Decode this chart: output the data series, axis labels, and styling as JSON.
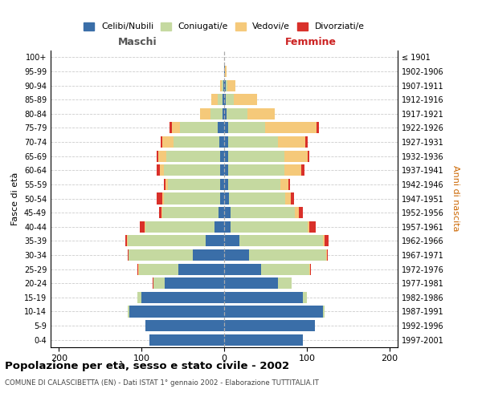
{
  "age_groups": [
    "0-4",
    "5-9",
    "10-14",
    "15-19",
    "20-24",
    "25-29",
    "30-34",
    "35-39",
    "40-44",
    "45-49",
    "50-54",
    "55-59",
    "60-64",
    "65-69",
    "70-74",
    "75-79",
    "80-84",
    "85-89",
    "90-94",
    "95-99",
    "100+"
  ],
  "birth_years": [
    "1997-2001",
    "1992-1996",
    "1987-1991",
    "1982-1986",
    "1977-1981",
    "1972-1976",
    "1967-1971",
    "1962-1966",
    "1957-1961",
    "1952-1956",
    "1947-1951",
    "1942-1946",
    "1937-1941",
    "1932-1936",
    "1927-1931",
    "1922-1926",
    "1917-1921",
    "1912-1916",
    "1907-1911",
    "1902-1906",
    "≤ 1901"
  ],
  "maschi": {
    "celibe": [
      90,
      95,
      115,
      100,
      72,
      55,
      38,
      22,
      12,
      7,
      5,
      5,
      5,
      5,
      6,
      8,
      2,
      2,
      1,
      0,
      0
    ],
    "coniugato": [
      0,
      0,
      2,
      5,
      14,
      48,
      78,
      95,
      83,
      68,
      68,
      63,
      68,
      65,
      55,
      45,
      15,
      6,
      2,
      0,
      0
    ],
    "vedovo": [
      0,
      0,
      0,
      0,
      0,
      1,
      0,
      1,
      1,
      1,
      2,
      3,
      5,
      10,
      14,
      10,
      12,
      8,
      2,
      0,
      0
    ],
    "divorziato": [
      0,
      0,
      0,
      0,
      1,
      1,
      1,
      2,
      6,
      3,
      7,
      2,
      4,
      2,
      2,
      3,
      0,
      0,
      0,
      0,
      0
    ]
  },
  "femmine": {
    "nubile": [
      95,
      110,
      120,
      95,
      65,
      45,
      30,
      18,
      8,
      8,
      6,
      5,
      5,
      5,
      5,
      5,
      3,
      2,
      2,
      1,
      0
    ],
    "coniugata": [
      0,
      0,
      2,
      5,
      17,
      58,
      93,
      102,
      93,
      78,
      68,
      63,
      68,
      68,
      60,
      45,
      25,
      10,
      2,
      0,
      0
    ],
    "vedova": [
      0,
      0,
      0,
      0,
      0,
      1,
      1,
      2,
      2,
      4,
      7,
      10,
      20,
      28,
      33,
      62,
      33,
      28,
      10,
      2,
      0
    ],
    "divorziata": [
      0,
      0,
      0,
      0,
      0,
      1,
      1,
      4,
      8,
      5,
      4,
      2,
      4,
      2,
      3,
      3,
      0,
      0,
      0,
      0,
      0
    ]
  },
  "colors": {
    "celibe": "#3a6ea8",
    "coniugato": "#c5d9a0",
    "vedovo": "#f5c97a",
    "divorziato": "#d9302a"
  },
  "xlim": 210,
  "xtick_vals": [
    -200,
    -100,
    0,
    100,
    200
  ],
  "xtick_labels": [
    "200",
    "100",
    "0",
    "100",
    "200"
  ],
  "title": "Popolazione per età, sesso e stato civile - 2002",
  "subtitle": "COMUNE DI CALASCIBETTA (EN) - Dati ISTAT 1° gennaio 2002 - Elaborazione TUTTITALIA.IT",
  "ylabel_left": "Fasce di età",
  "ylabel_right": "Anni di nascita",
  "maschi_label": "Maschi",
  "femmine_label": "Femmine",
  "legend_labels": [
    "Celibi/Nubili",
    "Coniugati/e",
    "Vedovi/e",
    "Divorziati/e"
  ],
  "maschi_color": "#555555",
  "femmine_color": "#cc2222",
  "right_label_color": "#cc6600",
  "bg_color": "#ffffff",
  "grid_color": "#cccccc"
}
